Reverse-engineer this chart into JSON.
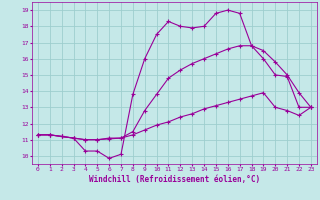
{
  "xlabel": "Windchill (Refroidissement éolien,°C)",
  "background_color": "#c5e8e8",
  "grid_color": "#9ecece",
  "line_color": "#990099",
  "xlim": [
    -0.5,
    23.5
  ],
  "ylim": [
    9.5,
    19.5
  ],
  "xticks": [
    0,
    1,
    2,
    3,
    4,
    5,
    6,
    7,
    8,
    9,
    10,
    11,
    12,
    13,
    14,
    15,
    16,
    17,
    18,
    19,
    20,
    21,
    22,
    23
  ],
  "yticks": [
    10,
    11,
    12,
    13,
    14,
    15,
    16,
    17,
    18,
    19
  ],
  "curve1_x": [
    0,
    1,
    2,
    3,
    4,
    5,
    6,
    7,
    8,
    9,
    10,
    11,
    12,
    13,
    14,
    15,
    16,
    17,
    18,
    19,
    20,
    21,
    22,
    23
  ],
  "curve1_y": [
    11.3,
    11.3,
    11.2,
    11.1,
    10.3,
    10.3,
    9.85,
    10.1,
    13.8,
    16.0,
    17.5,
    18.3,
    18.0,
    17.9,
    18.0,
    18.8,
    19.0,
    18.8,
    16.8,
    16.0,
    15.0,
    14.9,
    13.0,
    13.0
  ],
  "curve2_x": [
    0,
    1,
    2,
    3,
    4,
    5,
    6,
    7,
    8,
    9,
    10,
    11,
    12,
    13,
    14,
    15,
    16,
    17,
    18,
    19,
    20,
    21,
    22,
    23
  ],
  "curve2_y": [
    11.3,
    11.3,
    11.2,
    11.1,
    11.0,
    11.0,
    11.05,
    11.1,
    11.3,
    11.6,
    11.9,
    12.1,
    12.4,
    12.6,
    12.9,
    13.1,
    13.3,
    13.5,
    13.7,
    13.9,
    13.0,
    12.8,
    12.5,
    13.0
  ],
  "curve3_x": [
    0,
    1,
    2,
    3,
    4,
    5,
    6,
    7,
    8,
    9,
    10,
    11,
    12,
    13,
    14,
    15,
    16,
    17,
    18,
    19,
    20,
    21,
    22,
    23
  ],
  "curve3_y": [
    11.3,
    11.3,
    11.2,
    11.1,
    11.0,
    11.0,
    11.1,
    11.1,
    11.5,
    12.8,
    13.8,
    14.8,
    15.3,
    15.7,
    16.0,
    16.3,
    16.6,
    16.8,
    16.8,
    16.5,
    15.8,
    15.0,
    13.9,
    13.0
  ]
}
